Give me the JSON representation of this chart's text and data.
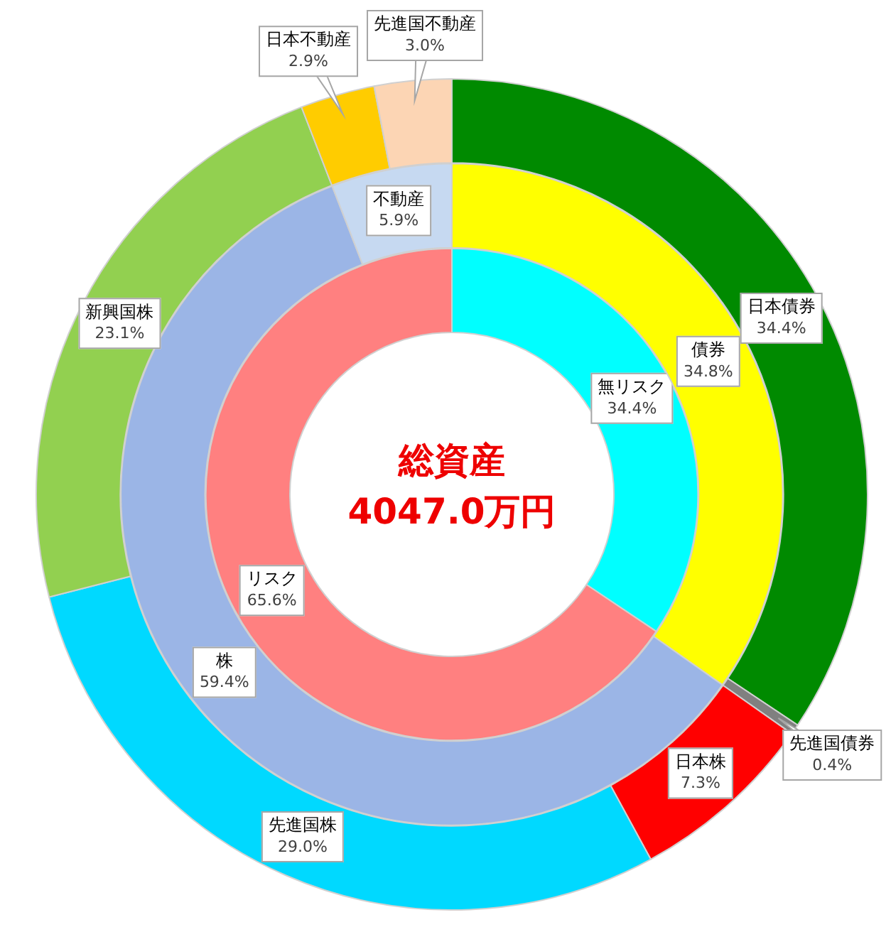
{
  "chart_data": [
    {
      "type": "donut",
      "title": "総資産",
      "subtitle": "4047.0万円",
      "categories": [
        "無リスク",
        "リスク"
      ],
      "values": [
        34.4,
        65.6
      ],
      "colors": [
        "#00ffff",
        "#ff8080"
      ],
      "value_labels": [
        "34.4%",
        "65.6%"
      ]
    },
    {
      "type": "donut",
      "categories": [
        "債券",
        "株",
        "不動産"
      ],
      "values": [
        34.8,
        59.4,
        5.9
      ],
      "colors": [
        "#ffff00",
        "#9bb5e6",
        "#c6d9f1"
      ],
      "value_labels": [
        "34.8%",
        "59.4%",
        "5.9%"
      ]
    },
    {
      "type": "donut",
      "categories": [
        "日本債券",
        "先進国債券",
        "日本株",
        "先進国株",
        "新興国株",
        "日本不動産",
        "先進国不動産"
      ],
      "values": [
        34.4,
        0.4,
        7.3,
        29.0,
        23.1,
        2.9,
        3.0
      ],
      "colors": [
        "#008a00",
        "#808080",
        "#ff0000",
        "#00d9ff",
        "#92d050",
        "#ffcc00",
        "#fcd5b4"
      ],
      "value_labels": [
        "34.4%",
        "0.4%",
        "7.3%",
        "29.0%",
        "23.1%",
        "2.9%",
        "3.0%"
      ]
    }
  ]
}
